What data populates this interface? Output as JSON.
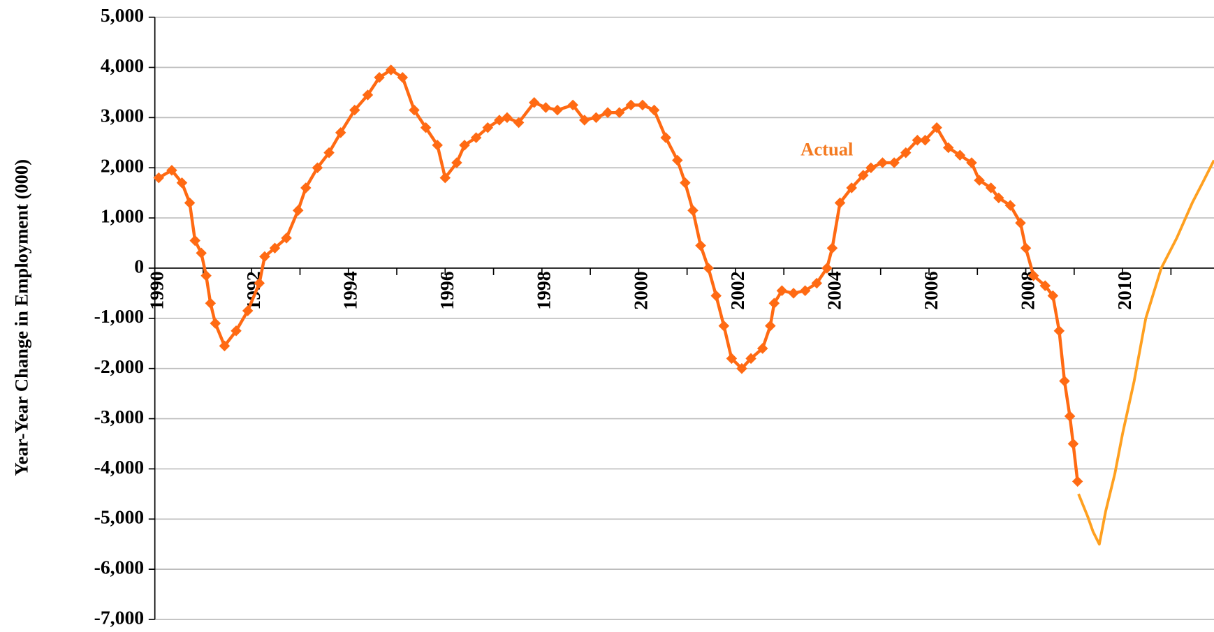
{
  "chart_data": {
    "type": "line",
    "y_label": "Year-Year Change in Employment (000)",
    "xlim": [
      1990,
      2011.89
    ],
    "xticks": [
      1990,
      1992,
      1994,
      1996,
      1998,
      2000,
      2002,
      2004,
      2006,
      2008,
      2010
    ],
    "ylim": [
      -7000,
      5000
    ],
    "yticks": [
      {
        "value": -7000,
        "label": "-7,000"
      },
      {
        "value": -6000,
        "label": "-6,000"
      },
      {
        "value": -5000,
        "label": "-5,000"
      },
      {
        "value": -4000,
        "label": "-4,000"
      },
      {
        "value": -3000,
        "label": "-3,000"
      },
      {
        "value": -2000,
        "label": "-2,000"
      },
      {
        "value": -1000,
        "label": "-1,000"
      },
      0,
      {
        "value": 1000,
        "label": "1,000"
      },
      {
        "value": 2000,
        "label": "2,000"
      },
      {
        "value": 3000,
        "label": "3,000"
      },
      {
        "value": 4000,
        "label": "4,000"
      },
      {
        "value": 5000,
        "label": "5,000"
      }
    ],
    "grid": true,
    "series": [
      {
        "name": "Actual",
        "color": "#ff6a13",
        "markers": true,
        "x": [
          1990.08,
          1990.35,
          1990.56,
          1990.72,
          1990.83,
          1990.96,
          1991.06,
          1991.15,
          1991.25,
          1991.44,
          1991.68,
          1991.92,
          1992.16,
          1992.27,
          1992.48,
          1992.72,
          1992.96,
          1993.12,
          1993.36,
          1993.6,
          1993.84,
          1994.13,
          1994.4,
          1994.64,
          1994.88,
          1995.12,
          1995.36,
          1995.6,
          1995.84,
          1996.0,
          1996.24,
          1996.4,
          1996.64,
          1996.88,
          1997.12,
          1997.28,
          1997.52,
          1997.84,
          1998.08,
          1998.32,
          1998.64,
          1998.88,
          1999.12,
          1999.36,
          1999.6,
          1999.84,
          2000.08,
          2000.32,
          2000.56,
          2000.8,
          2000.96,
          2001.12,
          2001.28,
          2001.44,
          2001.6,
          2001.76,
          2001.92,
          2002.13,
          2002.32,
          2002.56,
          2002.72,
          2002.8,
          2002.96,
          2003.2,
          2003.44,
          2003.68,
          2003.89,
          2004.0,
          2004.16,
          2004.4,
          2004.64,
          2004.8,
          2005.04,
          2005.28,
          2005.52,
          2005.76,
          2005.92,
          2006.16,
          2006.4,
          2006.64,
          2006.88,
          2007.04,
          2007.28,
          2007.44,
          2007.68,
          2007.89,
          2008.0,
          2008.16,
          2008.4,
          2008.56,
          2008.69,
          2008.8,
          2008.91,
          2008.98,
          2009.07
        ],
        "values": [
          1800,
          1950,
          1700,
          1300,
          550,
          300,
          -150,
          -700,
          -1100,
          -1550,
          -1250,
          -850,
          -300,
          230,
          400,
          600,
          1150,
          1600,
          2000,
          2300,
          2700,
          3150,
          3450,
          3800,
          3950,
          3800,
          3150,
          2800,
          2450,
          1800,
          2100,
          2450,
          2600,
          2800,
          2950,
          3000,
          2900,
          3300,
          3200,
          3150,
          3250,
          2950,
          3000,
          3100,
          3100,
          3250,
          3250,
          3150,
          2600,
          2150,
          1700,
          1150,
          450,
          0,
          -550,
          -1150,
          -1800,
          -2000,
          -1800,
          -1600,
          -1150,
          -700,
          -450,
          -500,
          -450,
          -300,
          0,
          400,
          1300,
          1600,
          1850,
          2000,
          2100,
          2100,
          2300,
          2550,
          2550,
          2800,
          2400,
          2250,
          2100,
          1750,
          1600,
          1400,
          1250,
          900,
          400,
          -150,
          -350,
          -550,
          -1250,
          -2250,
          -2950,
          -3500,
          -4250
        ]
      },
      {
        "color": "#ffa020",
        "markers": false,
        "x": [
          2009.09,
          2009.28,
          2009.39,
          2009.52,
          2009.65,
          2009.84,
          2010.0,
          2010.24,
          2010.48,
          2010.8,
          2011.12,
          2011.44,
          2011.68,
          2011.89
        ],
        "values": [
          -4500,
          -4950,
          -5250,
          -5500,
          -4850,
          -4100,
          -3300,
          -2250,
          -1000,
          0,
          600,
          1300,
          1750,
          2150
        ]
      }
    ],
    "annotations": [
      {
        "text": "Actual",
        "series": 0
      }
    ]
  }
}
